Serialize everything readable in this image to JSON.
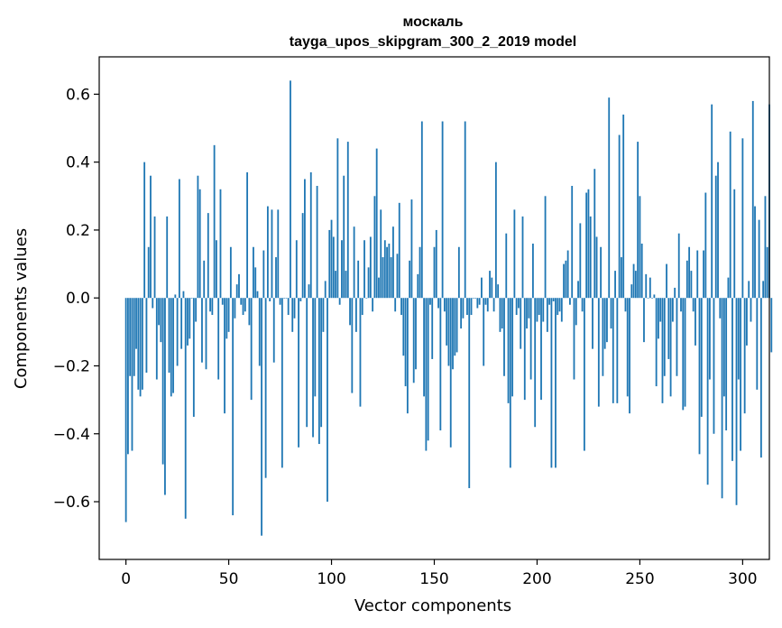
{
  "chart_data": {
    "type": "bar",
    "title_line1": "москаль",
    "title_line2": "tayga_upos_skipgram_300_2_2019 model",
    "xlabel": "Vector components",
    "ylabel": "Components values",
    "xlim": [
      -13,
      313
    ],
    "ylim": [
      -0.77,
      0.71
    ],
    "xticks": [
      0,
      50,
      100,
      150,
      200,
      250,
      300
    ],
    "xtick_labels": [
      "0",
      "50",
      "100",
      "150",
      "200",
      "250",
      "300"
    ],
    "yticks": [
      -0.6,
      -0.4,
      -0.2,
      0.0,
      0.2,
      0.4,
      0.6
    ],
    "ytick_labels": [
      "−0.6",
      "−0.4",
      "−0.2",
      "0.0",
      "0.2",
      "0.4",
      "0.6"
    ],
    "bar_color": "#1f77b4",
    "values": [
      -0.66,
      -0.46,
      -0.23,
      -0.45,
      -0.23,
      -0.15,
      -0.27,
      -0.29,
      -0.27,
      0.4,
      -0.22,
      0.15,
      0.36,
      -0.03,
      0.24,
      -0.24,
      -0.08,
      -0.13,
      -0.49,
      -0.58,
      0.24,
      -0.22,
      -0.29,
      -0.28,
      0.01,
      -0.2,
      0.35,
      -0.15,
      0.02,
      -0.65,
      -0.14,
      -0.12,
      0.0,
      -0.35,
      -0.07,
      0.36,
      0.32,
      -0.19,
      0.11,
      -0.21,
      0.25,
      -0.04,
      -0.05,
      0.45,
      0.17,
      -0.24,
      0.32,
      -0.02,
      -0.34,
      -0.12,
      -0.1,
      0.15,
      -0.64,
      -0.06,
      0.04,
      0.07,
      -0.02,
      -0.05,
      -0.04,
      0.37,
      -0.08,
      -0.3,
      0.15,
      0.09,
      0.02,
      -0.2,
      -0.7,
      0.14,
      -0.53,
      0.27,
      -0.01,
      0.26,
      -0.19,
      0.12,
      0.26,
      -0.02,
      -0.5,
      0.0,
      0.0,
      -0.05,
      0.64,
      -0.1,
      -0.06,
      0.17,
      -0.44,
      -0.01,
      0.25,
      0.35,
      -0.38,
      0.04,
      0.37,
      -0.41,
      -0.29,
      0.33,
      -0.43,
      -0.38,
      -0.1,
      0.05,
      -0.6,
      0.2,
      0.23,
      0.18,
      0.08,
      0.47,
      -0.02,
      0.17,
      0.36,
      0.08,
      0.46,
      -0.08,
      -0.28,
      0.21,
      -0.1,
      0.11,
      -0.32,
      -0.05,
      0.17,
      0.0,
      0.09,
      0.18,
      -0.04,
      0.3,
      0.44,
      0.06,
      0.26,
      0.12,
      0.17,
      0.15,
      0.16,
      0.12,
      0.21,
      -0.04,
      0.13,
      0.28,
      -0.05,
      -0.17,
      -0.26,
      -0.34,
      0.11,
      0.29,
      -0.25,
      -0.21,
      0.07,
      0.15,
      0.52,
      -0.29,
      -0.45,
      -0.42,
      -0.02,
      -0.18,
      0.15,
      0.2,
      -0.03,
      -0.39,
      0.52,
      -0.04,
      -0.14,
      -0.2,
      -0.44,
      -0.21,
      -0.17,
      -0.16,
      0.15,
      -0.09,
      -0.06,
      0.52,
      -0.05,
      -0.56,
      -0.05,
      0.0,
      0.0,
      -0.03,
      -0.02,
      0.06,
      -0.2,
      -0.02,
      -0.04,
      0.08,
      0.06,
      -0.04,
      0.4,
      0.04,
      -0.1,
      -0.09,
      -0.23,
      0.19,
      -0.31,
      -0.5,
      -0.29,
      0.26,
      -0.05,
      -0.03,
      -0.15,
      0.24,
      -0.3,
      -0.09,
      -0.06,
      -0.24,
      0.16,
      -0.38,
      -0.07,
      -0.05,
      -0.3,
      -0.07,
      0.3,
      -0.1,
      -0.02,
      -0.5,
      -0.01,
      -0.5,
      -0.05,
      -0.04,
      -0.07,
      0.1,
      0.11,
      0.14,
      -0.02,
      0.33,
      -0.24,
      -0.08,
      0.05,
      0.22,
      -0.04,
      -0.45,
      0.31,
      0.32,
      0.24,
      -0.15,
      0.38,
      0.18,
      -0.32,
      0.15,
      -0.23,
      -0.15,
      -0.13,
      0.59,
      -0.09,
      -0.31,
      0.08,
      -0.31,
      0.48,
      0.12,
      0.54,
      -0.04,
      -0.29,
      -0.34,
      0.04,
      0.1,
      0.08,
      0.46,
      0.3,
      0.16,
      -0.13,
      0.07,
      0.0,
      0.06,
      0.0,
      0.01,
      -0.26,
      -0.12,
      -0.07,
      -0.31,
      -0.23,
      0.1,
      -0.18,
      -0.29,
      -0.07,
      0.03,
      -0.23,
      0.19,
      -0.04,
      -0.33,
      -0.32,
      0.11,
      0.15,
      0.08,
      -0.04,
      -0.14,
      0.14,
      -0.46,
      -0.35,
      0.14,
      0.31,
      -0.55,
      -0.24,
      0.57,
      -0.4,
      0.36,
      0.4,
      -0.06,
      -0.59,
      -0.29,
      -0.39,
      0.06,
      0.49,
      -0.48,
      0.32,
      -0.61,
      -0.24,
      -0.45,
      0.47,
      -0.34,
      -0.14,
      0.05,
      -0.07,
      0.58,
      0.27,
      -0.27,
      0.23,
      -0.47,
      0.05,
      0.3,
      0.15,
      0.57,
      -0.16
    ]
  }
}
